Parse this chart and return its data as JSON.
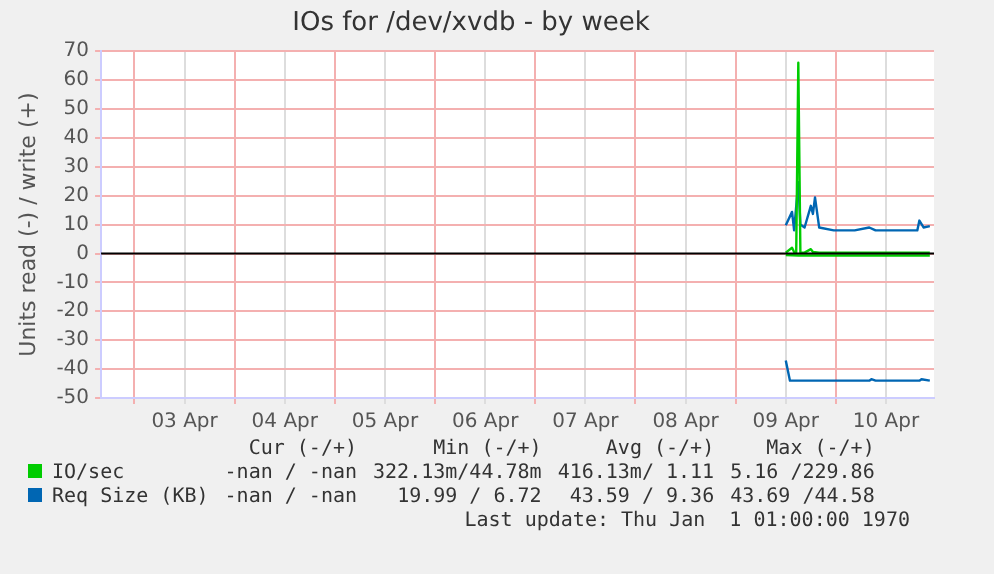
{
  "chart_data": {
    "type": "line",
    "title": "IOs for /dev/xvdb - by week",
    "ylabel": "Units read (-) / write (+)",
    "xlim": [
      "--04-02T16:00",
      "--04-10T23:30"
    ],
    "xticks": [
      {
        "value": "--04-03T00:00",
        "label": null
      },
      {
        "value": "--04-03T12:00",
        "label": "03 Apr"
      },
      {
        "value": "--04-04T00:00",
        "label": null
      },
      {
        "value": "--04-04T12:00",
        "label": "04 Apr"
      },
      {
        "value": "--04-05T00:00",
        "label": null
      },
      {
        "value": "--04-05T12:00",
        "label": "05 Apr"
      },
      {
        "value": "--04-06T00:00",
        "label": null
      },
      {
        "value": "--04-06T12:00",
        "label": "06 Apr"
      },
      {
        "value": "--04-07T00:00",
        "label": null
      },
      {
        "value": "--04-07T12:00",
        "label": "07 Apr"
      },
      {
        "value": "--04-08T00:00",
        "label": null
      },
      {
        "value": "--04-08T12:00",
        "label": "08 Apr"
      },
      {
        "value": "--04-09T00:00",
        "label": null
      },
      {
        "value": "--04-09T12:00",
        "label": "09 Apr"
      },
      {
        "value": "--04-10T00:00",
        "label": null
      },
      {
        "value": "--04-10T12:00",
        "label": "10 Apr"
      }
    ],
    "ylim": [
      -50,
      70
    ],
    "yticks": [
      -50,
      -40,
      -30,
      -20,
      -10,
      0,
      10,
      20,
      30,
      40,
      50,
      60,
      70
    ],
    "grid": true,
    "legend": "bottom",
    "marker": "none",
    "line_style": "solid",
    "ref_lines": [
      {
        "axis": "y",
        "value": 0,
        "color": "#000000"
      }
    ],
    "series": [
      {
        "name": "IO/sec",
        "color": "#00cc00",
        "x": [
          "--04-09T12:00",
          "--04-09T13:30",
          "--04-09T14:00",
          "--04-09T14:30",
          "--04-09T15:00",
          "--04-09T15:30",
          "--04-09T16:30",
          "--04-09T18:00",
          "--04-09T18:30",
          "--04-09T20:00",
          "--04-09T23:30",
          "--04-10T08:00",
          "--04-10T14:30",
          "--04-10T22:30"
        ],
        "values": [
          0.3,
          2,
          0.5,
          0.3,
          66,
          0.3,
          0.3,
          1.5,
          0.5,
          0.3,
          0.3,
          0.3,
          0.3,
          0.3
        ]
      },
      {
        "color": "#00cc00",
        "x": [
          "--04-09T12:00",
          "--04-09T15:00",
          "--04-10T08:00",
          "--04-10T22:30"
        ],
        "values": [
          -0.5,
          -0.7,
          -0.7,
          -0.7
        ]
      },
      {
        "name": "Req Size (KB)",
        "color": "#0066b3",
        "x": [
          "--04-09T12:00",
          "--04-09T13:30",
          "--04-09T14:00",
          "--04-09T15:00",
          "--04-09T15:30",
          "--04-09T16:30",
          "--04-09T18:00",
          "--04-09T18:30",
          "--04-09T19:00",
          "--04-09T20:00",
          "--04-09T23:30",
          "--04-10T04:30",
          "--04-10T08:00",
          "--04-10T09:30",
          "--04-10T14:30",
          "--04-10T19:30",
          "--04-10T20:00",
          "--04-10T21:00",
          "--04-10T22:30"
        ],
        "values": [
          9.8,
          14.4,
          8,
          24.7,
          10,
          9,
          16.5,
          13.7,
          19.4,
          9,
          8,
          8,
          9,
          8,
          8,
          8,
          11.4,
          9,
          9.5
        ]
      },
      {
        "color": "#0066b3",
        "x": [
          "--04-09T12:00",
          "--04-09T13:00",
          "--04-09T15:00",
          "--04-10T08:00",
          "--04-10T08:30",
          "--04-10T09:30",
          "--04-10T20:00",
          "--04-10T20:30",
          "--04-10T22:30"
        ],
        "values": [
          -37,
          -44,
          -44,
          -44,
          -43.5,
          -44,
          -44,
          -43.5,
          -44
        ]
      }
    ],
    "annotations": [
      "Cur (-/+)",
      "Min (-/+)",
      "Avg (-/+)",
      "Max (-/+)",
      "-nan / -nan",
      "322.13m/44.78m",
      "416.13m/ 1.11",
      "5.16 /229.86",
      "-nan / -nan",
      "19.99 / 6.72",
      "43.59 / 9.36",
      "43.69 /44.58",
      "Last update: Thu Jan  1 01:00:00 1970"
    ]
  }
}
